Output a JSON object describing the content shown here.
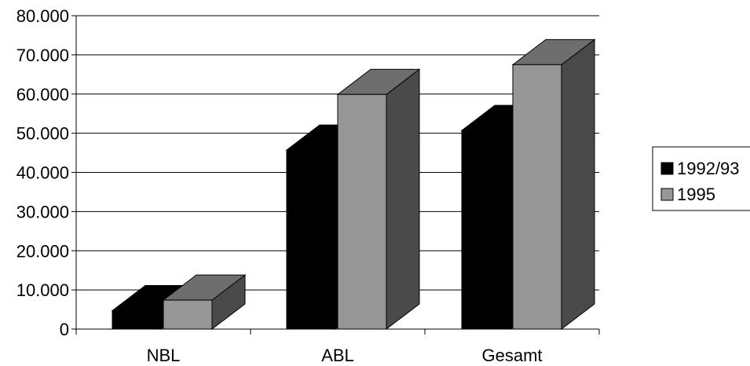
{
  "chart_data": {
    "type": "bar",
    "categories": [
      "NBL",
      "ABL",
      "Gesamt"
    ],
    "series": [
      {
        "name": "1992/93",
        "values": [
          4700,
          45700,
          50700
        ],
        "color": "#000000"
      },
      {
        "name": "1995",
        "values": [
          7400,
          59900,
          67500
        ],
        "color": "#969696"
      }
    ],
    "ylim": [
      0,
      80000
    ],
    "y_ticks": [
      "0",
      "10.000",
      "20.000",
      "30.000",
      "40.000",
      "50.000",
      "60.000",
      "70.000",
      "80.000"
    ],
    "gridlines": true,
    "legend_position": "right",
    "style": "3d-clustered-bar"
  }
}
